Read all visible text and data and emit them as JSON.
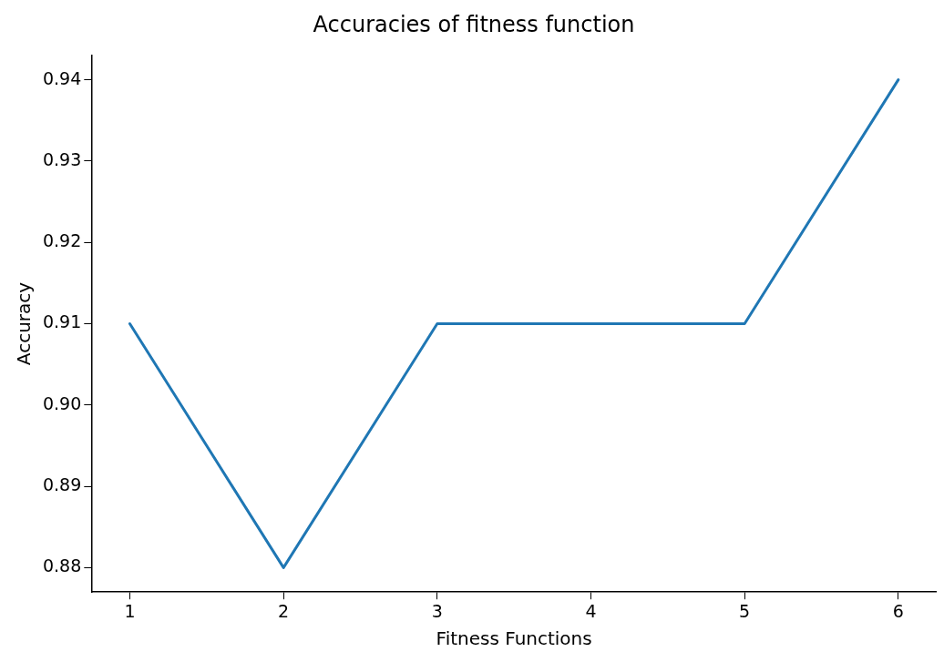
{
  "chart_data": {
    "type": "line",
    "title": "Accuracies of fitness function",
    "xlabel": "Fitness Functions",
    "ylabel": "Accuracy",
    "x": [
      1,
      2,
      3,
      4,
      5,
      6
    ],
    "series": [
      {
        "color": "#1f77b4",
        "values": [
          0.91,
          0.88,
          0.91,
          0.91,
          0.91,
          0.94
        ]
      }
    ],
    "xlim": [
      0.75,
      6.25
    ],
    "xticks": [
      1,
      2,
      3,
      4,
      5,
      6
    ],
    "ylim": [
      0.877,
      0.943
    ],
    "yticks": [
      {
        "value": 0.88,
        "label": "0.88"
      },
      {
        "value": 0.89,
        "label": "0.89"
      },
      {
        "value": 0.9,
        "label": "0.90"
      },
      {
        "value": 0.91,
        "label": "0.91"
      },
      {
        "value": 0.92,
        "label": "0.92"
      },
      {
        "value": 0.93,
        "label": "0.93"
      },
      {
        "value": 0.94,
        "label": "0.94"
      }
    ],
    "grid": false,
    "marker": "none",
    "line_style": "solid"
  }
}
